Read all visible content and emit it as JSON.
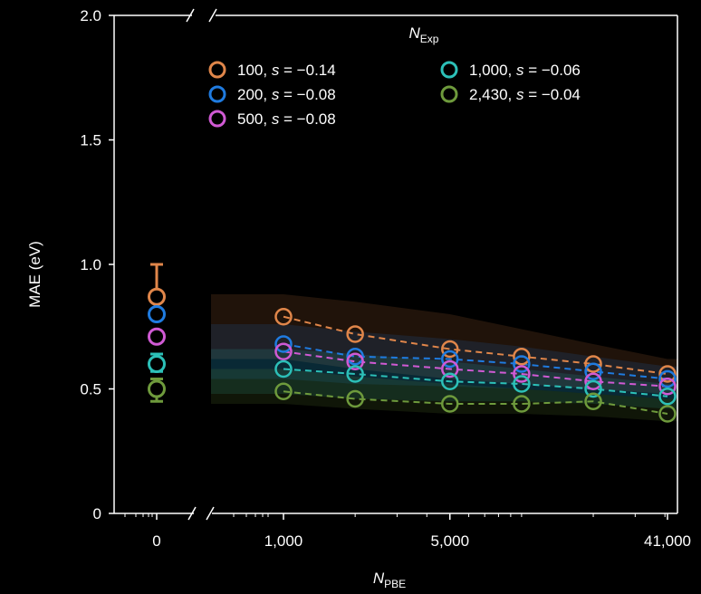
{
  "chart_data": {
    "type": "scatter",
    "title": "",
    "xlabel": "N",
    "xlabel_sub": "PBE",
    "ylabel": "MAE (eV)",
    "ylim": [
      0,
      2.0
    ],
    "yticks": [
      "0",
      "0.5",
      "1.0",
      "1.5",
      "2.0"
    ],
    "x_scale": "log",
    "x_break": true,
    "xticks": [
      {
        "x": 0,
        "label": "0"
      },
      {
        "x": 1000,
        "label": "1,000"
      },
      {
        "x": 5000,
        "label": "5,000"
      },
      {
        "x": 41000,
        "label": "41,000"
      }
    ],
    "x_positions": [
      1000,
      2000,
      5000,
      10000,
      20000,
      41000
    ],
    "legend": {
      "title": "N",
      "title_sub": "Exp",
      "placement": "top"
    },
    "series": [
      {
        "name": "100, s = −0.14",
        "color": "#e0864a",
        "baseline": 0.87,
        "err_low": 0.78,
        "err_high": 1.0,
        "values": [
          0.79,
          0.72,
          0.66,
          0.63,
          0.6,
          0.56
        ]
      },
      {
        "name": "200, s = −0.08",
        "color": "#1f7be0",
        "baseline": 0.8,
        "err_low": 0.78,
        "err_high": 0.82,
        "values": [
          0.68,
          0.63,
          0.62,
          0.6,
          0.57,
          0.54
        ]
      },
      {
        "name": "500, s = −0.08",
        "color": "#d05ad4",
        "baseline": 0.71,
        "err_low": 0.69,
        "err_high": 0.73,
        "values": [
          0.65,
          0.61,
          0.58,
          0.56,
          0.53,
          0.51
        ]
      },
      {
        "name": "1,000, s = −0.06",
        "color": "#2cc0b8",
        "baseline": 0.6,
        "err_low": 0.57,
        "err_high": 0.64,
        "values": [
          0.58,
          0.56,
          0.53,
          0.52,
          0.5,
          0.47
        ]
      },
      {
        "name": "2,430, s = −0.04",
        "color": "#6e9a3c",
        "baseline": 0.5,
        "err_low": 0.45,
        "err_high": 0.54,
        "values": [
          0.49,
          0.46,
          0.44,
          0.44,
          0.45,
          0.4
        ]
      }
    ],
    "bands": [
      {
        "color": "#e0864a",
        "upper": [
          0.88,
          0.85,
          0.8,
          0.74,
          0.68,
          0.62
        ],
        "lower": [
          0.62,
          0.58,
          0.54,
          0.52,
          0.5,
          0.48
        ]
      },
      {
        "color": "#1f7be0",
        "upper": [
          0.76,
          0.73,
          0.7,
          0.67,
          0.63,
          0.59
        ],
        "lower": [
          0.54,
          0.52,
          0.51,
          0.5,
          0.48,
          0.46
        ]
      },
      {
        "color": "#2cc0b8",
        "upper": [
          0.66,
          0.64,
          0.61,
          0.58,
          0.55,
          0.52
        ],
        "lower": [
          0.48,
          0.46,
          0.45,
          0.45,
          0.44,
          0.42
        ]
      },
      {
        "color": "#6e9a3c",
        "upper": [
          0.58,
          0.55,
          0.52,
          0.5,
          0.48,
          0.46
        ],
        "lower": [
          0.44,
          0.42,
          0.4,
          0.4,
          0.39,
          0.37
        ]
      }
    ]
  }
}
